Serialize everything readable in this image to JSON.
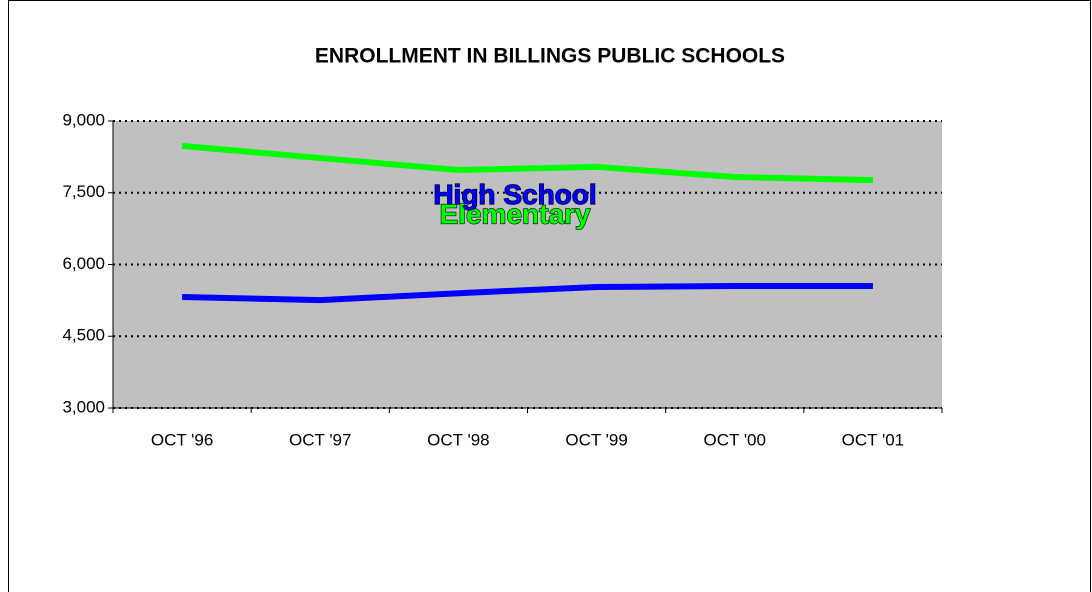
{
  "chart_data": {
    "type": "line",
    "title": "ENROLLMENT IN BILLINGS PUBLIC SCHOOLS",
    "categories": [
      "OCT '96",
      "OCT '97",
      "OCT '98",
      "OCT '99",
      "OCT '00",
      "OCT '01"
    ],
    "series": [
      {
        "name": "Elementary",
        "color": "#00ff00",
        "values": [
          8480,
          8225,
          7975,
          8040,
          7830,
          7765
        ]
      },
      {
        "name": "High School",
        "color": "#0000ff",
        "values": [
          5320,
          5255,
          5400,
          5530,
          5550,
          5550
        ]
      }
    ],
    "ylim": [
      3000,
      9000
    ],
    "yticks": [
      {
        "value": 3000,
        "label": "3,000"
      },
      {
        "value": 4500,
        "label": "4,500"
      },
      {
        "value": 6000,
        "label": "6,000"
      },
      {
        "value": 7500,
        "label": "7,500"
      },
      {
        "value": 9000,
        "label": "9,000"
      }
    ],
    "grid": true
  }
}
